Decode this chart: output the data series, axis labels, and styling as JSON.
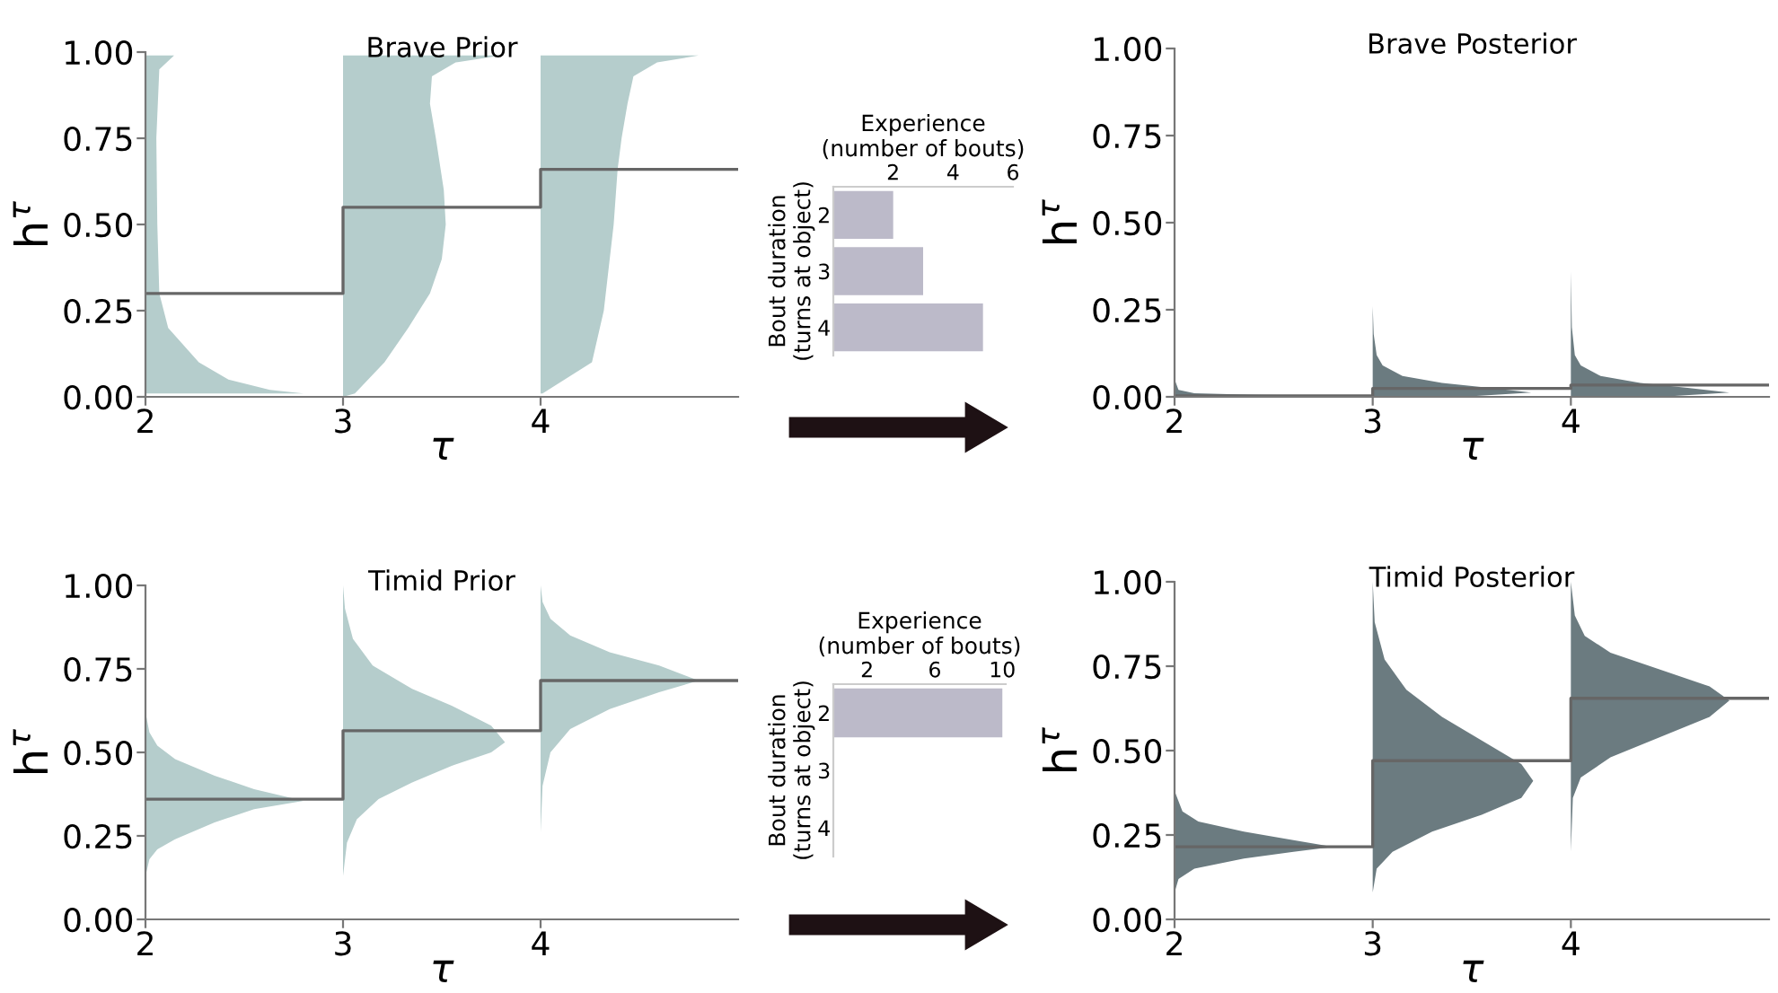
{
  "chart_data": [
    {
      "type": "line",
      "title": "Brave Prior",
      "xlabel": "τ",
      "ylabel": "h$^{τ}$",
      "xlim": [
        2,
        5
      ],
      "xticks": [
        2,
        3,
        4
      ],
      "ylim": [
        0,
        1
      ],
      "yticks": [
        {
          "value": 0,
          "label": "0.00"
        },
        {
          "value": 0.25,
          "label": "0.25"
        },
        {
          "value": 0.5,
          "label": "0.50"
        },
        {
          "value": 0.75,
          "label": "0.75"
        },
        {
          "value": 1,
          "label": "1.00"
        }
      ],
      "series": [
        {
          "type": "area",
          "color": "#b5cdcc",
          "x": [
            2.0,
            2.8,
            2.63,
            2.42,
            2.27,
            2.115,
            2.07,
            2.06,
            2.055,
            2.07,
            2.145,
            2.0
          ],
          "values": [
            0.01,
            0.01,
            0.02,
            0.05,
            0.1,
            0.2,
            0.3,
            0.5,
            0.75,
            0.95,
            0.99,
            0.99
          ]
        },
        {
          "type": "area",
          "color": "#b5cdcc",
          "x": [
            3.0,
            3.06,
            3.21,
            3.33,
            3.44,
            3.5,
            3.52,
            3.51,
            3.47,
            3.44,
            3.45,
            3.57,
            3.8,
            3.0
          ],
          "values": [
            0.0,
            0.01,
            0.1,
            0.2,
            0.3,
            0.4,
            0.5,
            0.6,
            0.75,
            0.85,
            0.93,
            0.97,
            0.99,
            0.99
          ]
        },
        {
          "type": "area",
          "color": "#b5cdcc",
          "x": [
            4.0,
            4.01,
            4.26,
            4.32,
            4.37,
            4.39,
            4.41,
            4.44,
            4.47,
            4.59,
            4.8,
            4.0
          ],
          "values": [
            0.01,
            0.01,
            0.1,
            0.25,
            0.5,
            0.66,
            0.75,
            0.85,
            0.93,
            0.97,
            0.99,
            0.99
          ]
        },
        {
          "type": "step",
          "color": "#666666",
          "x": [
            2,
            3,
            4,
            5
          ],
          "values": [
            0.3,
            0.55,
            0.66,
            0.66
          ]
        }
      ]
    },
    {
      "type": "bar",
      "orientation": "horizontal",
      "xlabel": "Experience\n(number of bouts)",
      "ylabel": "Bout duration\n(turns at object)",
      "categories": [
        "2",
        "3",
        "4"
      ],
      "values": [
        2,
        3,
        5
      ],
      "color": "#bcbac9",
      "xlim": [
        0,
        6
      ],
      "xticks": [
        2,
        4,
        6
      ]
    },
    {
      "type": "line",
      "title": "Brave Posterior",
      "xlabel": "τ",
      "ylabel": "h$^{τ}$",
      "xlim": [
        2,
        5
      ],
      "xticks": [
        2,
        3,
        4
      ],
      "ylim": [
        0,
        1
      ],
      "yticks": [
        {
          "value": 0,
          "label": "0.00"
        },
        {
          "value": 0.25,
          "label": "0.25"
        },
        {
          "value": 0.5,
          "label": "0.50"
        },
        {
          "value": 0.75,
          "label": "0.75"
        },
        {
          "value": 1,
          "label": "1.00"
        }
      ],
      "series": [
        {
          "type": "area",
          "color": "#6b7b80",
          "x": [
            2.0,
            2.4,
            2.9,
            2.4,
            2.1,
            2.02,
            2.0
          ],
          "values": [
            0.0,
            0.0,
            0.003,
            0.006,
            0.01,
            0.02,
            0.05
          ]
        },
        {
          "type": "area",
          "color": "#6b7b80",
          "x": [
            3.0,
            3.45,
            3.8,
            3.6,
            3.35,
            3.15,
            3.05,
            3.02,
            3.005,
            3.0
          ],
          "values": [
            0.0,
            0.0,
            0.012,
            0.025,
            0.04,
            0.06,
            0.09,
            0.12,
            0.18,
            0.26
          ]
        },
        {
          "type": "area",
          "color": "#6b7b80",
          "x": [
            4.0,
            4.45,
            4.8,
            4.6,
            4.35,
            4.15,
            4.05,
            4.02,
            4.005,
            4.0
          ],
          "values": [
            0.0,
            0.0,
            0.012,
            0.025,
            0.04,
            0.06,
            0.09,
            0.12,
            0.2,
            0.36
          ]
        },
        {
          "type": "step",
          "color": "#666666",
          "x": [
            2,
            3,
            4,
            5
          ],
          "values": [
            0.003,
            0.024,
            0.034,
            0.034
          ]
        }
      ]
    },
    {
      "type": "line",
      "title": "Timid Prior",
      "xlabel": "τ",
      "ylabel": "h$^{τ}$",
      "xlim": [
        2,
        5
      ],
      "xticks": [
        2,
        3,
        4
      ],
      "ylim": [
        0,
        1
      ],
      "yticks": [
        {
          "value": 0,
          "label": "0.00"
        },
        {
          "value": 0.25,
          "label": "0.25"
        },
        {
          "value": 0.5,
          "label": "0.50"
        },
        {
          "value": 0.75,
          "label": "0.75"
        },
        {
          "value": 1,
          "label": "1.00"
        }
      ],
      "series": [
        {
          "type": "area",
          "color": "#b5cdcc",
          "x": [
            2.0,
            2.02,
            2.06,
            2.15,
            2.35,
            2.55,
            2.8,
            2.55,
            2.35,
            2.15,
            2.06,
            2.02,
            2.0
          ],
          "values": [
            0.13,
            0.18,
            0.21,
            0.24,
            0.29,
            0.33,
            0.355,
            0.39,
            0.43,
            0.48,
            0.52,
            0.56,
            0.62
          ]
        },
        {
          "type": "area",
          "color": "#b5cdcc",
          "x": [
            3.0,
            3.02,
            3.07,
            3.18,
            3.35,
            3.55,
            3.75,
            3.82,
            3.75,
            3.55,
            3.35,
            3.15,
            3.05,
            3.01,
            3.0
          ],
          "values": [
            0.13,
            0.23,
            0.3,
            0.36,
            0.41,
            0.46,
            0.5,
            0.53,
            0.58,
            0.64,
            0.69,
            0.76,
            0.84,
            0.93,
            1.0
          ]
        },
        {
          "type": "area",
          "color": "#b5cdcc",
          "x": [
            4.0,
            4.01,
            4.05,
            4.15,
            4.35,
            4.6,
            4.8,
            4.6,
            4.35,
            4.15,
            4.05,
            4.01,
            4.0
          ],
          "values": [
            0.26,
            0.4,
            0.5,
            0.57,
            0.63,
            0.68,
            0.715,
            0.76,
            0.8,
            0.85,
            0.9,
            0.95,
            1.0
          ]
        },
        {
          "type": "step",
          "color": "#666666",
          "x": [
            2,
            3,
            4,
            5
          ],
          "values": [
            0.36,
            0.565,
            0.715,
            0.715
          ]
        }
      ]
    },
    {
      "type": "bar",
      "orientation": "horizontal",
      "xlabel": "Experience\n(number of bouts)",
      "ylabel": "Bout duration\n(turns at object)",
      "categories": [
        "2",
        "3",
        "4"
      ],
      "values": [
        10,
        0,
        0
      ],
      "color": "#bcbac9",
      "xlim": [
        0,
        10.2
      ],
      "xticks": [
        2,
        6,
        10
      ]
    },
    {
      "type": "line",
      "title": "Timid Posterior",
      "xlabel": "τ",
      "ylabel": "h$^{τ}$",
      "xlim": [
        2,
        5
      ],
      "xticks": [
        2,
        3,
        4
      ],
      "ylim": [
        0,
        1
      ],
      "yticks": [
        {
          "value": 0,
          "label": "0.00"
        },
        {
          "value": 0.25,
          "label": "0.25"
        },
        {
          "value": 0.5,
          "label": "0.50"
        },
        {
          "value": 0.75,
          "label": "0.75"
        },
        {
          "value": 1,
          "label": "1.00"
        }
      ],
      "series": [
        {
          "type": "area",
          "color": "#6b7b80",
          "x": [
            2.0,
            2.02,
            2.1,
            2.35,
            2.6,
            2.8,
            2.6,
            2.35,
            2.12,
            2.04,
            2.0
          ],
          "values": [
            0.08,
            0.12,
            0.15,
            0.18,
            0.2,
            0.215,
            0.235,
            0.26,
            0.29,
            0.32,
            0.38
          ]
        },
        {
          "type": "area",
          "color": "#6b7b80",
          "x": [
            3.0,
            3.02,
            3.1,
            3.3,
            3.55,
            3.75,
            3.81,
            3.75,
            3.55,
            3.35,
            3.17,
            3.06,
            3.01,
            3.0
          ],
          "values": [
            0.08,
            0.15,
            0.2,
            0.26,
            0.31,
            0.36,
            0.41,
            0.46,
            0.53,
            0.6,
            0.68,
            0.77,
            0.88,
            1.0
          ]
        },
        {
          "type": "area",
          "color": "#6b7b80",
          "x": [
            4.0,
            4.01,
            4.05,
            4.2,
            4.45,
            4.7,
            4.8,
            4.7,
            4.45,
            4.2,
            4.07,
            4.02,
            4.0
          ],
          "values": [
            0.2,
            0.36,
            0.42,
            0.48,
            0.54,
            0.6,
            0.648,
            0.69,
            0.74,
            0.79,
            0.84,
            0.9,
            1.0
          ]
        },
        {
          "type": "step",
          "color": "#666666",
          "x": [
            2,
            3,
            4,
            5
          ],
          "values": [
            0.215,
            0.47,
            0.655,
            0.655
          ]
        }
      ]
    }
  ]
}
